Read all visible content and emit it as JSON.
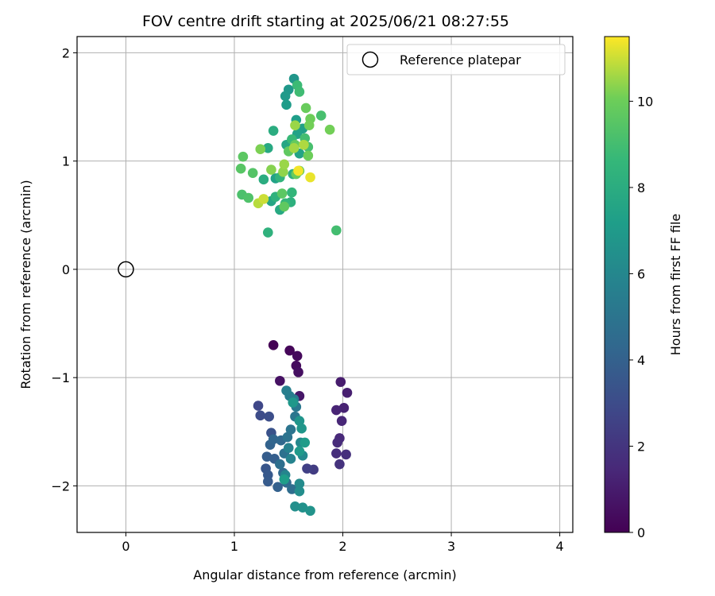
{
  "chart_data": {
    "type": "scatter",
    "title": "FOV centre drift starting at 2025/06/21 08:27:55",
    "xlabel": "Angular distance from reference (arcmin)",
    "ylabel": "Rotation from reference (arcmin)",
    "xlim": [
      -0.45,
      4.12
    ],
    "ylim": [
      -2.43,
      2.15
    ],
    "xticks": [
      0,
      1,
      2,
      3,
      4
    ],
    "yticks": [
      -2,
      -1,
      0,
      1,
      2
    ],
    "xtick_labels": [
      "0",
      "1",
      "2",
      "3",
      "4"
    ],
    "ytick_labels": [
      "−2",
      "−1",
      "0",
      "1",
      "2"
    ],
    "grid": true,
    "legend": {
      "position": "top-right",
      "entries": [
        {
          "label": "Reference platepar",
          "marker": "open-circle"
        }
      ]
    },
    "reference_point": {
      "x": 0,
      "y": 0
    },
    "colorbar": {
      "label": "Hours from first FF file",
      "colormap": "viridis",
      "range": [
        0,
        11.5
      ],
      "ticks": [
        0,
        2,
        4,
        6,
        8,
        10
      ],
      "tick_labels": [
        "0",
        "2",
        "4",
        "6",
        "8",
        "10"
      ]
    },
    "points": [
      {
        "x": 1.36,
        "y": -0.7,
        "c": 0.0
      },
      {
        "x": 1.51,
        "y": -0.75,
        "c": 0.2
      },
      {
        "x": 1.58,
        "y": -0.8,
        "c": 0.3
      },
      {
        "x": 1.57,
        "y": -0.89,
        "c": 0.4
      },
      {
        "x": 1.59,
        "y": -0.95,
        "c": 0.5
      },
      {
        "x": 1.42,
        "y": -1.03,
        "c": 0.6
      },
      {
        "x": 1.6,
        "y": -1.17,
        "c": 0.8
      },
      {
        "x": 1.98,
        "y": -1.04,
        "c": 1.0
      },
      {
        "x": 2.04,
        "y": -1.14,
        "c": 1.1
      },
      {
        "x": 2.01,
        "y": -1.28,
        "c": 1.2
      },
      {
        "x": 1.94,
        "y": -1.3,
        "c": 1.3
      },
      {
        "x": 1.99,
        "y": -1.4,
        "c": 1.4
      },
      {
        "x": 1.97,
        "y": -1.56,
        "c": 1.5
      },
      {
        "x": 1.95,
        "y": -1.6,
        "c": 1.6
      },
      {
        "x": 1.94,
        "y": -1.7,
        "c": 1.7
      },
      {
        "x": 2.03,
        "y": -1.71,
        "c": 1.8
      },
      {
        "x": 1.97,
        "y": -1.8,
        "c": 1.9
      },
      {
        "x": 1.73,
        "y": -1.85,
        "c": 2.3
      },
      {
        "x": 1.67,
        "y": -1.84,
        "c": 2.5
      },
      {
        "x": 1.22,
        "y": -1.26,
        "c": 2.8
      },
      {
        "x": 1.24,
        "y": -1.35,
        "c": 3.0
      },
      {
        "x": 1.32,
        "y": -1.36,
        "c": 3.1
      },
      {
        "x": 1.34,
        "y": -1.51,
        "c": 3.3
      },
      {
        "x": 1.29,
        "y": -1.84,
        "c": 3.5
      },
      {
        "x": 1.31,
        "y": -1.9,
        "c": 3.6
      },
      {
        "x": 1.31,
        "y": -1.96,
        "c": 3.7
      },
      {
        "x": 1.3,
        "y": -1.73,
        "c": 3.8
      },
      {
        "x": 1.37,
        "y": -1.75,
        "c": 3.9
      },
      {
        "x": 1.4,
        "y": -2.01,
        "c": 4.0
      },
      {
        "x": 1.33,
        "y": -1.62,
        "c": 4.1
      },
      {
        "x": 1.36,
        "y": -1.57,
        "c": 4.2
      },
      {
        "x": 1.43,
        "y": -1.58,
        "c": 4.3
      },
      {
        "x": 1.45,
        "y": -1.88,
        "c": 4.4
      },
      {
        "x": 1.48,
        "y": -1.97,
        "c": 4.5
      },
      {
        "x": 1.53,
        "y": -2.03,
        "c": 4.6
      },
      {
        "x": 1.42,
        "y": -1.8,
        "c": 4.7
      },
      {
        "x": 1.46,
        "y": -1.7,
        "c": 4.8
      },
      {
        "x": 1.49,
        "y": -1.55,
        "c": 4.9
      },
      {
        "x": 1.52,
        "y": -1.48,
        "c": 5.0
      },
      {
        "x": 1.56,
        "y": -1.36,
        "c": 5.1
      },
      {
        "x": 1.57,
        "y": -1.27,
        "c": 5.2
      },
      {
        "x": 1.55,
        "y": -1.2,
        "c": 5.4
      },
      {
        "x": 1.51,
        "y": -1.17,
        "c": 5.5
      },
      {
        "x": 1.48,
        "y": -1.12,
        "c": 5.6
      },
      {
        "x": 1.5,
        "y": -1.65,
        "c": 5.7
      },
      {
        "x": 1.52,
        "y": -1.75,
        "c": 5.8
      },
      {
        "x": 1.47,
        "y": -1.9,
        "c": 5.9
      },
      {
        "x": 1.61,
        "y": -1.6,
        "c": 6.0
      },
      {
        "x": 1.63,
        "y": -1.72,
        "c": 6.1
      },
      {
        "x": 1.6,
        "y": -1.98,
        "c": 6.2
      },
      {
        "x": 1.6,
        "y": -2.05,
        "c": 6.3
      },
      {
        "x": 1.56,
        "y": -2.19,
        "c": 6.4
      },
      {
        "x": 1.63,
        "y": -2.2,
        "c": 6.5
      },
      {
        "x": 1.7,
        "y": -2.23,
        "c": 6.6
      },
      {
        "x": 1.6,
        "y": -1.4,
        "c": 6.7
      },
      {
        "x": 1.62,
        "y": -1.47,
        "c": 6.8
      },
      {
        "x": 1.54,
        "y": -1.23,
        "c": 6.9
      },
      {
        "x": 1.6,
        "y": -1.68,
        "c": 7.0
      },
      {
        "x": 1.65,
        "y": -1.6,
        "c": 7.1
      },
      {
        "x": 1.46,
        "y": -1.94,
        "c": 7.2
      },
      {
        "x": 1.55,
        "y": 1.76,
        "c": 6.8
      },
      {
        "x": 1.5,
        "y": 1.66,
        "c": 6.9
      },
      {
        "x": 1.47,
        "y": 1.6,
        "c": 7.0
      },
      {
        "x": 1.48,
        "y": 1.52,
        "c": 7.1
      },
      {
        "x": 1.57,
        "y": 1.38,
        "c": 7.2
      },
      {
        "x": 1.63,
        "y": 1.3,
        "c": 7.3
      },
      {
        "x": 1.58,
        "y": 1.25,
        "c": 7.4
      },
      {
        "x": 1.6,
        "y": 1.07,
        "c": 7.5
      },
      {
        "x": 1.48,
        "y": 1.15,
        "c": 7.6
      },
      {
        "x": 1.38,
        "y": 0.84,
        "c": 7.4
      },
      {
        "x": 1.34,
        "y": 0.63,
        "c": 7.6
      },
      {
        "x": 1.42,
        "y": 0.55,
        "c": 7.8
      },
      {
        "x": 1.31,
        "y": 1.12,
        "c": 7.8
      },
      {
        "x": 1.27,
        "y": 0.83,
        "c": 8.0
      },
      {
        "x": 1.36,
        "y": 1.28,
        "c": 8.0
      },
      {
        "x": 1.54,
        "y": 0.88,
        "c": 8.1
      },
      {
        "x": 1.52,
        "y": 0.62,
        "c": 8.2
      },
      {
        "x": 1.38,
        "y": 0.67,
        "c": 8.3
      },
      {
        "x": 1.31,
        "y": 0.34,
        "c": 8.3
      },
      {
        "x": 1.42,
        "y": 0.85,
        "c": 8.4
      },
      {
        "x": 1.53,
        "y": 0.71,
        "c": 8.5
      },
      {
        "x": 1.47,
        "y": 0.61,
        "c": 8.6
      },
      {
        "x": 1.53,
        "y": 1.2,
        "c": 8.7
      },
      {
        "x": 1.58,
        "y": 1.7,
        "c": 8.8
      },
      {
        "x": 1.6,
        "y": 1.64,
        "c": 8.9
      },
      {
        "x": 1.65,
        "y": 1.21,
        "c": 9.0
      },
      {
        "x": 1.68,
        "y": 1.13,
        "c": 9.1
      },
      {
        "x": 1.8,
        "y": 1.42,
        "c": 9.1
      },
      {
        "x": 1.94,
        "y": 0.36,
        "c": 9.0
      },
      {
        "x": 1.07,
        "y": 0.69,
        "c": 9.2
      },
      {
        "x": 1.13,
        "y": 0.66,
        "c": 9.3
      },
      {
        "x": 1.17,
        "y": 0.89,
        "c": 9.4
      },
      {
        "x": 1.06,
        "y": 0.93,
        "c": 9.5
      },
      {
        "x": 1.08,
        "y": 1.04,
        "c": 9.6
      },
      {
        "x": 1.44,
        "y": 0.7,
        "c": 9.6
      },
      {
        "x": 1.46,
        "y": 0.58,
        "c": 9.7
      },
      {
        "x": 1.5,
        "y": 1.09,
        "c": 9.7
      },
      {
        "x": 1.56,
        "y": 1.15,
        "c": 9.8
      },
      {
        "x": 1.6,
        "y": 0.91,
        "c": 9.8
      },
      {
        "x": 1.57,
        "y": 0.88,
        "c": 9.9
      },
      {
        "x": 1.66,
        "y": 1.49,
        "c": 9.9
      },
      {
        "x": 1.7,
        "y": 1.39,
        "c": 10.0
      },
      {
        "x": 1.68,
        "y": 1.05,
        "c": 10.0
      },
      {
        "x": 1.69,
        "y": 1.33,
        "c": 10.1
      },
      {
        "x": 1.88,
        "y": 1.29,
        "c": 10.1
      },
      {
        "x": 1.24,
        "y": 1.11,
        "c": 10.2
      },
      {
        "x": 1.34,
        "y": 0.92,
        "c": 10.3
      },
      {
        "x": 1.45,
        "y": 0.9,
        "c": 10.4
      },
      {
        "x": 1.46,
        "y": 0.97,
        "c": 10.5
      },
      {
        "x": 1.56,
        "y": 1.33,
        "c": 10.5
      },
      {
        "x": 1.55,
        "y": 1.12,
        "c": 10.6
      },
      {
        "x": 1.64,
        "y": 1.15,
        "c": 10.7
      },
      {
        "x": 1.22,
        "y": 0.61,
        "c": 10.8
      },
      {
        "x": 1.27,
        "y": 0.65,
        "c": 11.0
      },
      {
        "x": 1.7,
        "y": 0.85,
        "c": 11.3
      },
      {
        "x": 1.59,
        "y": 0.91,
        "c": 11.4
      }
    ]
  }
}
